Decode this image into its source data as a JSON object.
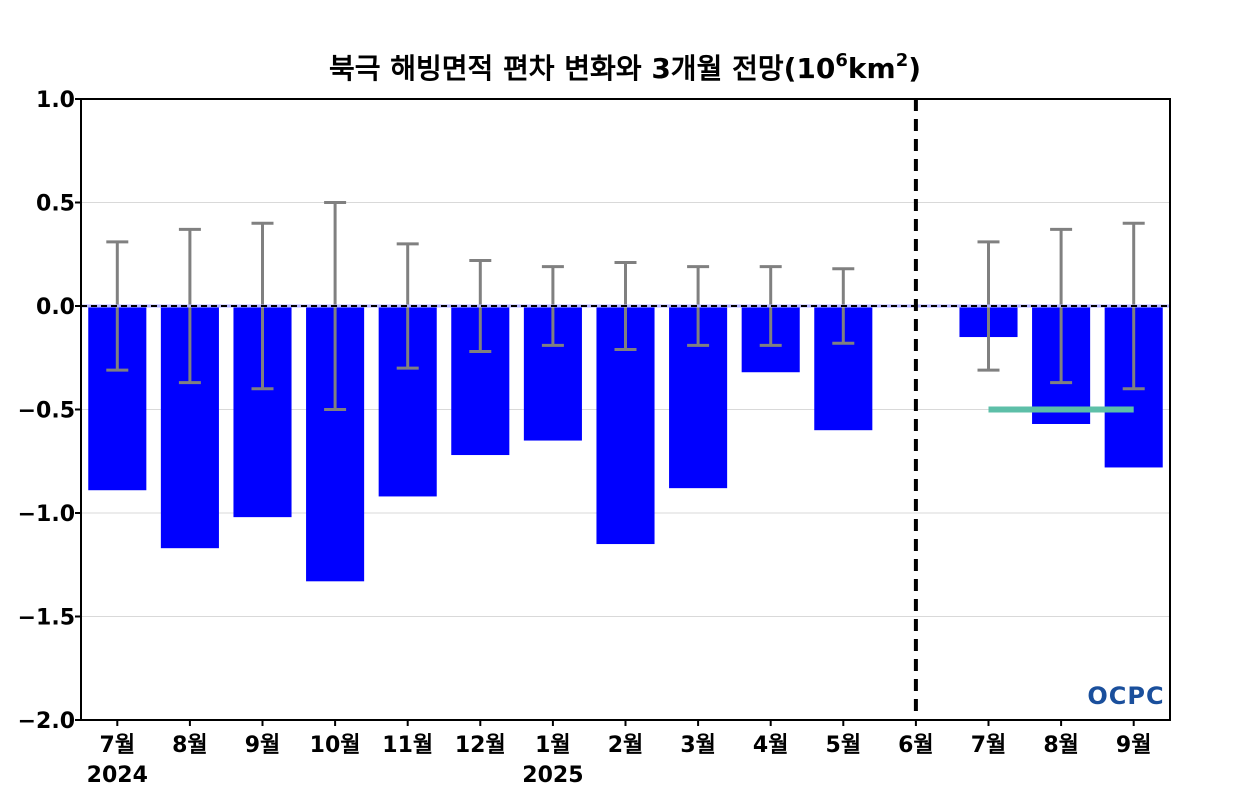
{
  "chart_data": {
    "type": "bar",
    "title": {
      "main": "북극 해빙면적 편차 변화와 3개월 전망(10",
      "sup1": "6",
      "mid": "km",
      "sup2": "2",
      "end": ")"
    },
    "categories": [
      "7월",
      "8월",
      "9월",
      "10월",
      "11월",
      "12월",
      "1월",
      "2월",
      "3월",
      "4월",
      "5월",
      "6월",
      "7월",
      "8월",
      "9월"
    ],
    "year_labels": [
      {
        "category_index": 0,
        "label": "2024"
      },
      {
        "category_index": 6,
        "label": "2025"
      }
    ],
    "series": [
      {
        "values": [
          -0.89,
          -1.17,
          -1.02,
          -1.33,
          -0.92,
          -0.72,
          -0.65,
          -1.15,
          -0.88,
          -0.32,
          -0.6,
          0.0,
          -0.15,
          -0.57,
          -0.78
        ],
        "error": [
          0.31,
          0.37,
          0.4,
          0.5,
          0.3,
          0.22,
          0.19,
          0.21,
          0.19,
          0.19,
          0.18,
          0.0,
          0.31,
          0.37,
          0.4
        ],
        "color": "#0000ff"
      }
    ],
    "forecast_line": {
      "from_index": 12,
      "to_index": 14,
      "value": -0.5,
      "color": "#5dbfa8"
    },
    "divider_at_index": 11,
    "ylim": [
      -2.0,
      1.0
    ],
    "yticks": [
      1.0,
      0.5,
      0.0,
      -0.5,
      -1.0,
      -1.5,
      -2.0
    ],
    "ytick_labels": [
      "1.0",
      "0.5",
      "0.0",
      "−0.5",
      "−1.0",
      "−1.5",
      "−2.0"
    ],
    "grid": true,
    "error_color": "#808080"
  },
  "logo": {
    "text": "OCPC"
  }
}
